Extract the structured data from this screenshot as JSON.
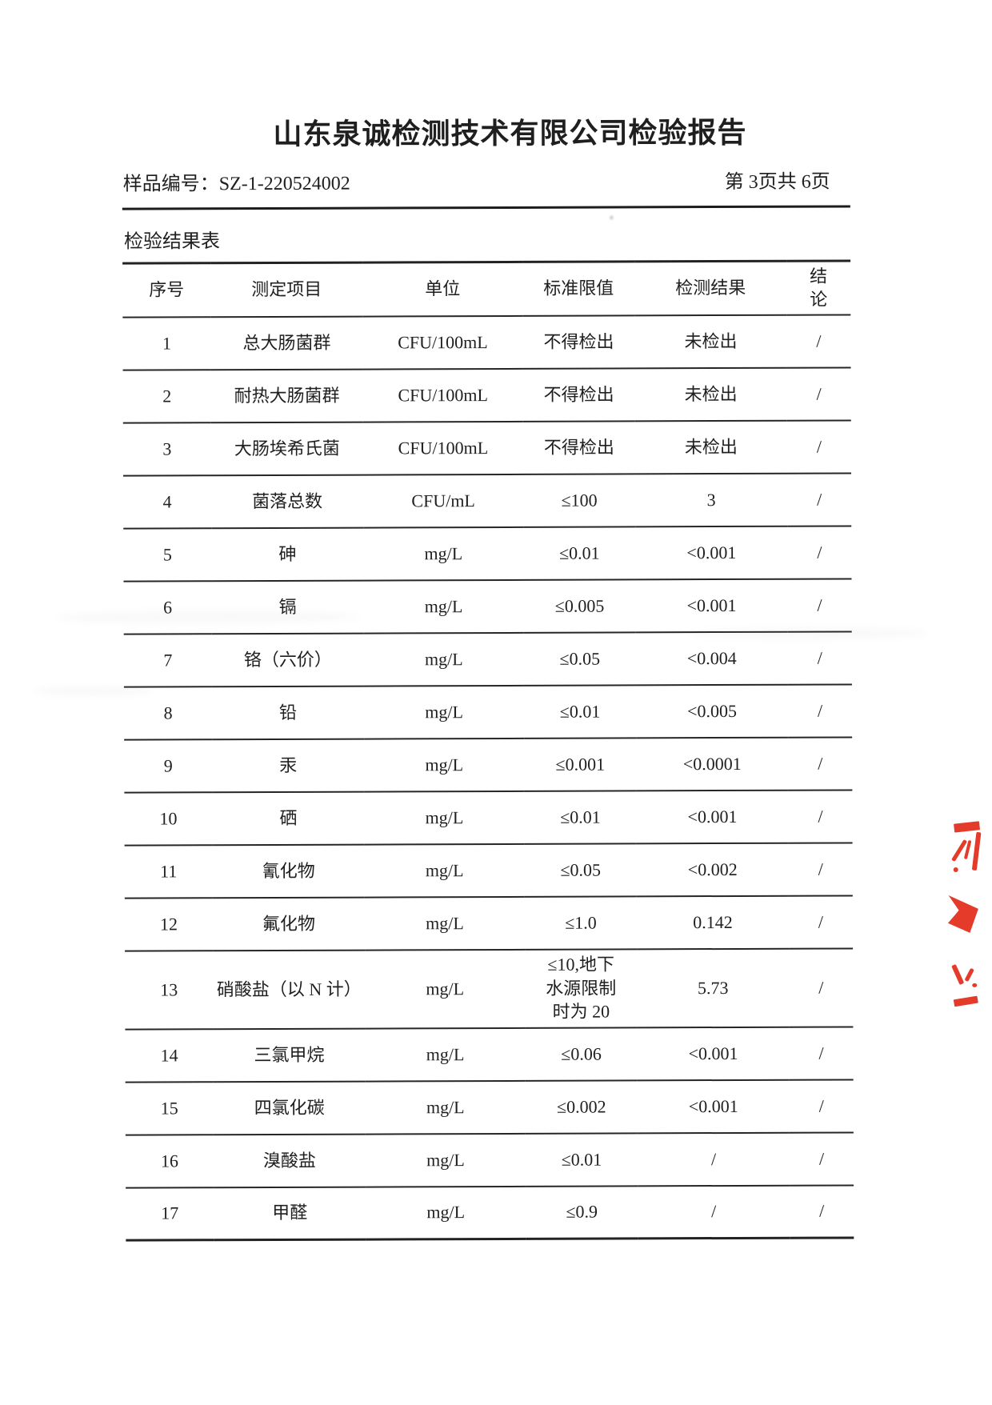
{
  "page": {
    "title": "山东泉诚检测技术有限公司检验报告",
    "sample_label": "样品编号：",
    "sample_number": "SZ-1-220524002",
    "page_indicator": "第 3页共 6页",
    "table_caption": "检验结果表"
  },
  "results_table": {
    "columns": [
      "序号",
      "测定项目",
      "单位",
      "标准限值",
      "检测结果",
      "结论"
    ],
    "rows": [
      [
        "1",
        "总大肠菌群",
        "CFU/100mL",
        "不得检出",
        "未检出",
        "/"
      ],
      [
        "2",
        "耐热大肠菌群",
        "CFU/100mL",
        "不得检出",
        "未检出",
        "/"
      ],
      [
        "3",
        "大肠埃希氏菌",
        "CFU/100mL",
        "不得检出",
        "未检出",
        "/"
      ],
      [
        "4",
        "菌落总数",
        "CFU/mL",
        "≤100",
        "3",
        "/"
      ],
      [
        "5",
        "砷",
        "mg/L",
        "≤0.01",
        "<0.001",
        "/"
      ],
      [
        "6",
        "镉",
        "mg/L",
        "≤0.005",
        "<0.001",
        "/"
      ],
      [
        "7",
        "铬（六价）",
        "mg/L",
        "≤0.05",
        "<0.004",
        "/"
      ],
      [
        "8",
        "铅",
        "mg/L",
        "≤0.01",
        "<0.005",
        "/"
      ],
      [
        "9",
        "汞",
        "mg/L",
        "≤0.001",
        "<0.0001",
        "/"
      ],
      [
        "10",
        "硒",
        "mg/L",
        "≤0.01",
        "<0.001",
        "/"
      ],
      [
        "11",
        "氰化物",
        "mg/L",
        "≤0.05",
        "<0.002",
        "/"
      ],
      [
        "12",
        "氟化物",
        "mg/L",
        "≤1.0",
        "0.142",
        "/"
      ],
      [
        "13",
        "硝酸盐（以 N 计）",
        "mg/L",
        "≤10,地下\n水源限制\n时为 20",
        "5.73",
        "/"
      ],
      [
        "14",
        "三氯甲烷",
        "mg/L",
        "≤0.06",
        "<0.001",
        "/"
      ],
      [
        "15",
        "四氯化碳",
        "mg/L",
        "≤0.002",
        "<0.001",
        "/"
      ],
      [
        "16",
        "溴酸盐",
        "mg/L",
        "≤0.01",
        "/",
        "/"
      ],
      [
        "17",
        "甲醛",
        "mg/L",
        "≤0.9",
        "/",
        "/"
      ]
    ]
  },
  "stamp": {
    "name": "red-seal-fragment",
    "color": "#e43b2b"
  }
}
